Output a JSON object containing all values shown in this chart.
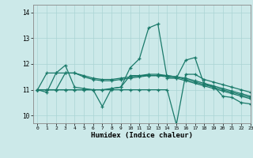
{
  "title": "",
  "xlabel": "Humidex (Indice chaleur)",
  "xlim": [
    -0.5,
    23
  ],
  "ylim": [
    9.7,
    14.3
  ],
  "yticks": [
    10,
    11,
    12,
    13,
    14
  ],
  "xticks": [
    0,
    1,
    2,
    3,
    4,
    5,
    6,
    7,
    8,
    9,
    10,
    11,
    12,
    13,
    14,
    15,
    16,
    17,
    18,
    19,
    20,
    21,
    22,
    23
  ],
  "bg_color": "#cce9e9",
  "grid_color": "#aad4d4",
  "line_color": "#1a7a6a",
  "lines": [
    [
      11.0,
      10.9,
      11.65,
      11.95,
      11.1,
      11.05,
      11.0,
      10.35,
      11.05,
      11.1,
      11.85,
      12.2,
      13.4,
      13.55,
      11.45,
      11.45,
      12.15,
      12.25,
      11.2,
      11.15,
      10.75,
      10.7,
      10.5,
      10.45
    ],
    [
      11.0,
      11.65,
      11.65,
      11.65,
      11.65,
      11.5,
      11.4,
      11.35,
      11.35,
      11.4,
      11.45,
      11.5,
      11.55,
      11.55,
      11.5,
      11.45,
      11.35,
      11.25,
      11.15,
      11.05,
      10.95,
      10.85,
      10.75,
      10.65
    ],
    [
      11.0,
      11.0,
      11.0,
      11.65,
      11.65,
      11.55,
      11.45,
      11.4,
      11.4,
      11.45,
      11.5,
      11.55,
      11.6,
      11.6,
      11.55,
      11.5,
      11.4,
      11.3,
      11.2,
      11.1,
      11.0,
      10.9,
      10.8,
      10.7
    ],
    [
      11.0,
      11.0,
      11.0,
      11.0,
      11.0,
      11.0,
      11.0,
      11.0,
      11.0,
      11.0,
      11.0,
      11.0,
      11.0,
      11.0,
      11.0,
      9.65,
      11.6,
      11.6,
      11.4,
      11.3,
      11.2,
      11.1,
      11.0,
      10.9
    ],
    [
      11.0,
      11.0,
      11.0,
      11.0,
      11.0,
      11.0,
      11.0,
      11.0,
      11.05,
      11.1,
      11.55,
      11.55,
      11.55,
      11.55,
      11.55,
      11.5,
      11.45,
      11.35,
      11.25,
      11.15,
      11.05,
      10.95,
      10.85,
      10.75
    ]
  ]
}
